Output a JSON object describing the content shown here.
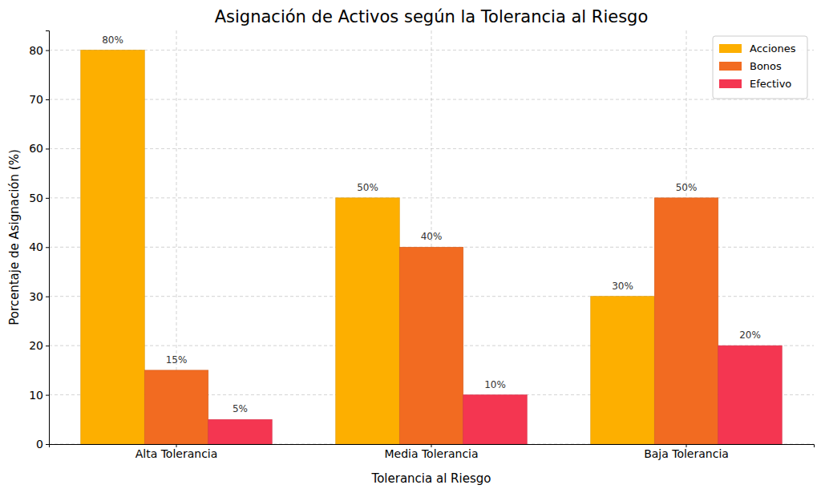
{
  "chart_data": {
    "type": "bar",
    "title": "Asignación de Activos según la Tolerancia al Riesgo",
    "x_label": "Tolerancia al Riesgo",
    "y_label": "Porcentaje de Asignación (%)",
    "categories": [
      "Alta Tolerancia",
      "Media Tolerancia",
      "Baja Tolerancia"
    ],
    "series": [
      {
        "name": "Acciones",
        "color": "#fdaf00",
        "values": [
          80,
          50,
          30
        ],
        "value_labels": [
          "80%",
          "50%",
          "30%"
        ]
      },
      {
        "name": "Bonos",
        "color": "#f26b21",
        "values": [
          15,
          40,
          50
        ],
        "value_labels": [
          "15%",
          "40%",
          "50%"
        ]
      },
      {
        "name": "Efectivo",
        "color": "#f43651",
        "values": [
          5,
          10,
          20
        ],
        "value_labels": [
          "5%",
          "10%",
          "20%"
        ]
      }
    ],
    "ylim": [
      0,
      84
    ],
    "yticks": [
      0,
      10,
      20,
      30,
      40,
      50,
      60,
      70,
      80
    ],
    "grid": true,
    "legend": "upper right",
    "data_labels": true
  }
}
